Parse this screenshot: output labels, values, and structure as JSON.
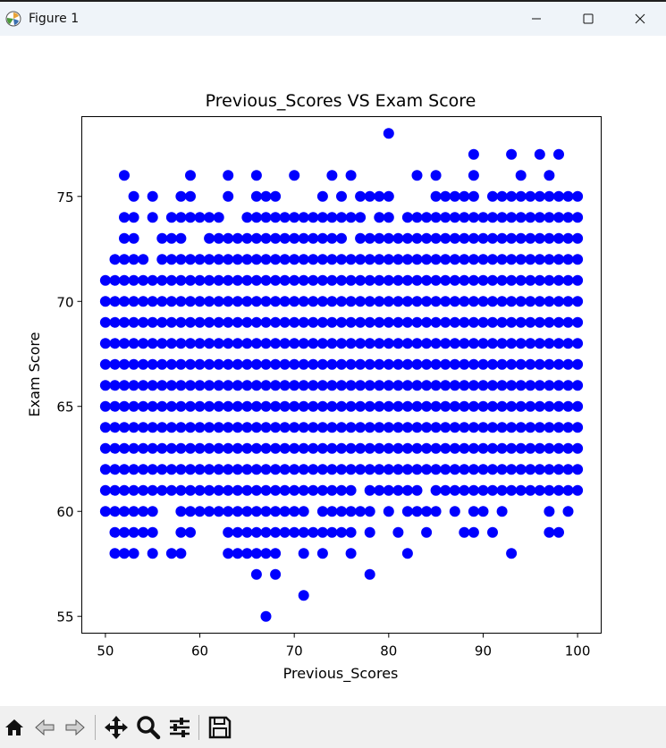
{
  "window": {
    "title": "Figure 1",
    "icon": "matplotlib-logo-icon",
    "controls": [
      "minimize-icon",
      "maximize-icon",
      "close-icon"
    ]
  },
  "toolbar": {
    "buttons": [
      "home-icon",
      "back-arrow-icon",
      "forward-arrow-icon",
      "pan-move-icon",
      "zoom-magnifier-icon",
      "configure-subplots-icon",
      "save-floppy-icon"
    ],
    "readout": ""
  },
  "chart_data": {
    "type": "scatter",
    "title": "Previous_Scores VS Exam Score",
    "xlabel": "Previous_Scores",
    "ylabel": "Exam Score",
    "xlim": [
      47.5,
      102.5
    ],
    "ylim": [
      54.2,
      78.8
    ],
    "xticks": [
      50,
      60,
      70,
      80,
      90,
      100
    ],
    "yticks": [
      55,
      60,
      65,
      70,
      75
    ],
    "grid": false,
    "marker_color": "#0000ff",
    "rows": [
      {
        "y": 78,
        "x": [
          80
        ]
      },
      {
        "y": 77,
        "x": [
          89,
          93,
          96,
          98
        ]
      },
      {
        "y": 76,
        "x": [
          52,
          59,
          63,
          66,
          70,
          74,
          76,
          83,
          85,
          89,
          94,
          97
        ]
      },
      {
        "y": 75,
        "x": [
          53,
          55,
          58,
          59,
          63,
          66,
          67,
          68,
          73,
          75,
          77,
          78,
          79,
          80,
          85,
          86,
          87,
          88,
          89,
          91,
          92,
          93,
          94,
          95,
          96,
          97,
          98,
          99,
          100
        ]
      },
      {
        "y": 74,
        "x": [
          52,
          53,
          55,
          57,
          58,
          59,
          60,
          61,
          62,
          65,
          66,
          67,
          68,
          69,
          70,
          71,
          72,
          73,
          74,
          75,
          76,
          77,
          79,
          80,
          82,
          83,
          84,
          85,
          86,
          87,
          88,
          89,
          90,
          91,
          92,
          93,
          94,
          95,
          96,
          97,
          98,
          99,
          100
        ]
      },
      {
        "y": 73,
        "x": [
          52,
          53,
          56,
          57,
          58,
          61,
          62,
          63,
          64,
          65,
          66,
          67,
          68,
          69,
          70,
          71,
          72,
          73,
          74,
          75,
          77,
          78,
          79,
          80,
          81,
          82,
          83,
          84,
          85,
          86,
          87,
          88,
          89,
          90,
          91,
          92,
          93,
          94,
          95,
          96,
          97,
          98,
          99,
          100
        ]
      },
      {
        "y": 72,
        "x": [
          51,
          52,
          53,
          54,
          56,
          57,
          58,
          59,
          60,
          61,
          62,
          63,
          64,
          65,
          66,
          67,
          68,
          69,
          70,
          71,
          72,
          73,
          74,
          75,
          76,
          77,
          78,
          79,
          80,
          81,
          82,
          83,
          84,
          85,
          86,
          87,
          88,
          89,
          90,
          91,
          92,
          93,
          94,
          95,
          96,
          97,
          98,
          99,
          100
        ]
      },
      {
        "y": 71,
        "x": [
          50,
          51,
          52,
          53,
          54,
          55,
          56,
          57,
          58,
          59,
          60,
          61,
          62,
          63,
          64,
          65,
          66,
          67,
          68,
          69,
          70,
          71,
          72,
          73,
          74,
          75,
          76,
          77,
          78,
          79,
          80,
          81,
          82,
          83,
          84,
          85,
          86,
          87,
          88,
          89,
          90,
          91,
          92,
          93,
          94,
          95,
          96,
          97,
          98,
          99,
          100
        ]
      },
      {
        "y": 70,
        "x": [
          50,
          51,
          52,
          53,
          54,
          55,
          56,
          57,
          58,
          59,
          60,
          61,
          62,
          63,
          64,
          65,
          66,
          67,
          68,
          69,
          70,
          71,
          72,
          73,
          74,
          75,
          76,
          77,
          78,
          79,
          80,
          81,
          82,
          83,
          84,
          85,
          86,
          87,
          88,
          89,
          90,
          91,
          92,
          93,
          94,
          95,
          96,
          97,
          98,
          99,
          100
        ]
      },
      {
        "y": 69,
        "x": [
          50,
          51,
          52,
          53,
          54,
          55,
          56,
          57,
          58,
          59,
          60,
          61,
          62,
          63,
          64,
          65,
          66,
          67,
          68,
          69,
          70,
          71,
          72,
          73,
          74,
          75,
          76,
          77,
          78,
          79,
          80,
          81,
          82,
          83,
          84,
          85,
          86,
          87,
          88,
          89,
          90,
          91,
          92,
          93,
          94,
          95,
          96,
          97,
          98,
          99,
          100
        ]
      },
      {
        "y": 68,
        "x": [
          50,
          51,
          52,
          53,
          54,
          55,
          56,
          57,
          58,
          59,
          60,
          61,
          62,
          63,
          64,
          65,
          66,
          67,
          68,
          69,
          70,
          71,
          72,
          73,
          74,
          75,
          76,
          77,
          78,
          79,
          80,
          81,
          82,
          83,
          84,
          85,
          86,
          87,
          88,
          89,
          90,
          91,
          92,
          93,
          94,
          95,
          96,
          97,
          98,
          99,
          100
        ]
      },
      {
        "y": 67,
        "x": [
          50,
          51,
          52,
          53,
          54,
          55,
          56,
          57,
          58,
          59,
          60,
          61,
          62,
          63,
          64,
          65,
          66,
          67,
          68,
          69,
          70,
          71,
          72,
          73,
          74,
          75,
          76,
          77,
          78,
          79,
          80,
          81,
          82,
          83,
          84,
          85,
          86,
          87,
          88,
          89,
          90,
          91,
          92,
          93,
          94,
          95,
          96,
          97,
          98,
          99,
          100
        ]
      },
      {
        "y": 66,
        "x": [
          50,
          51,
          52,
          53,
          54,
          55,
          56,
          57,
          58,
          59,
          60,
          61,
          62,
          63,
          64,
          65,
          66,
          67,
          68,
          69,
          70,
          71,
          72,
          73,
          74,
          75,
          76,
          77,
          78,
          79,
          80,
          81,
          82,
          83,
          84,
          85,
          86,
          87,
          88,
          89,
          90,
          91,
          92,
          93,
          94,
          95,
          96,
          97,
          98,
          99,
          100
        ]
      },
      {
        "y": 65,
        "x": [
          50,
          51,
          52,
          53,
          54,
          55,
          56,
          57,
          58,
          59,
          60,
          61,
          62,
          63,
          64,
          65,
          66,
          67,
          68,
          69,
          70,
          71,
          72,
          73,
          74,
          75,
          76,
          77,
          78,
          79,
          80,
          81,
          82,
          83,
          84,
          85,
          86,
          87,
          88,
          89,
          90,
          91,
          92,
          93,
          94,
          95,
          96,
          97,
          98,
          99,
          100
        ]
      },
      {
        "y": 64,
        "x": [
          50,
          51,
          52,
          53,
          54,
          55,
          56,
          57,
          58,
          59,
          60,
          61,
          62,
          63,
          64,
          65,
          66,
          67,
          68,
          69,
          70,
          71,
          72,
          73,
          74,
          75,
          76,
          77,
          78,
          79,
          80,
          81,
          82,
          83,
          84,
          85,
          86,
          87,
          88,
          89,
          90,
          91,
          92,
          93,
          94,
          95,
          96,
          97,
          98,
          99,
          100
        ]
      },
      {
        "y": 63,
        "x": [
          50,
          51,
          52,
          53,
          54,
          55,
          56,
          57,
          58,
          59,
          60,
          61,
          62,
          63,
          64,
          65,
          66,
          67,
          68,
          69,
          70,
          71,
          72,
          73,
          74,
          75,
          76,
          77,
          78,
          79,
          80,
          81,
          82,
          83,
          84,
          85,
          86,
          87,
          88,
          89,
          90,
          91,
          92,
          93,
          94,
          95,
          96,
          97,
          98,
          99,
          100
        ]
      },
      {
        "y": 62,
        "x": [
          50,
          51,
          52,
          53,
          54,
          55,
          56,
          57,
          58,
          59,
          60,
          61,
          62,
          63,
          64,
          65,
          66,
          67,
          68,
          69,
          70,
          71,
          72,
          73,
          74,
          75,
          76,
          77,
          78,
          79,
          80,
          81,
          82,
          83,
          84,
          85,
          86,
          87,
          88,
          89,
          90,
          91,
          92,
          93,
          94,
          95,
          96,
          97,
          98,
          99,
          100
        ]
      },
      {
        "y": 61,
        "x": [
          50,
          51,
          52,
          53,
          54,
          55,
          56,
          57,
          58,
          59,
          60,
          61,
          62,
          63,
          64,
          65,
          66,
          67,
          68,
          69,
          70,
          71,
          72,
          73,
          74,
          75,
          76,
          78,
          79,
          80,
          81,
          82,
          83,
          85,
          86,
          87,
          88,
          89,
          90,
          91,
          92,
          93,
          94,
          95,
          96,
          97,
          98,
          99,
          100
        ]
      },
      {
        "y": 60,
        "x": [
          50,
          51,
          52,
          53,
          54,
          55,
          58,
          59,
          60,
          61,
          62,
          63,
          64,
          65,
          66,
          67,
          68,
          69,
          70,
          71,
          73,
          74,
          75,
          76,
          77,
          78,
          80,
          82,
          83,
          84,
          85,
          87,
          89,
          90,
          92,
          97,
          99
        ]
      },
      {
        "y": 59,
        "x": [
          51,
          52,
          53,
          54,
          55,
          58,
          59,
          63,
          64,
          65,
          66,
          67,
          68,
          69,
          70,
          71,
          72,
          73,
          74,
          75,
          76,
          78,
          81,
          84,
          88,
          89,
          91,
          97,
          98
        ]
      },
      {
        "y": 58,
        "x": [
          51,
          52,
          53,
          55,
          57,
          58,
          63,
          64,
          65,
          66,
          67,
          68,
          71,
          73,
          76,
          82,
          93
        ]
      },
      {
        "y": 57,
        "x": [
          66,
          68,
          78
        ]
      },
      {
        "y": 56,
        "x": [
          71
        ]
      },
      {
        "y": 55,
        "x": [
          67
        ]
      }
    ]
  }
}
